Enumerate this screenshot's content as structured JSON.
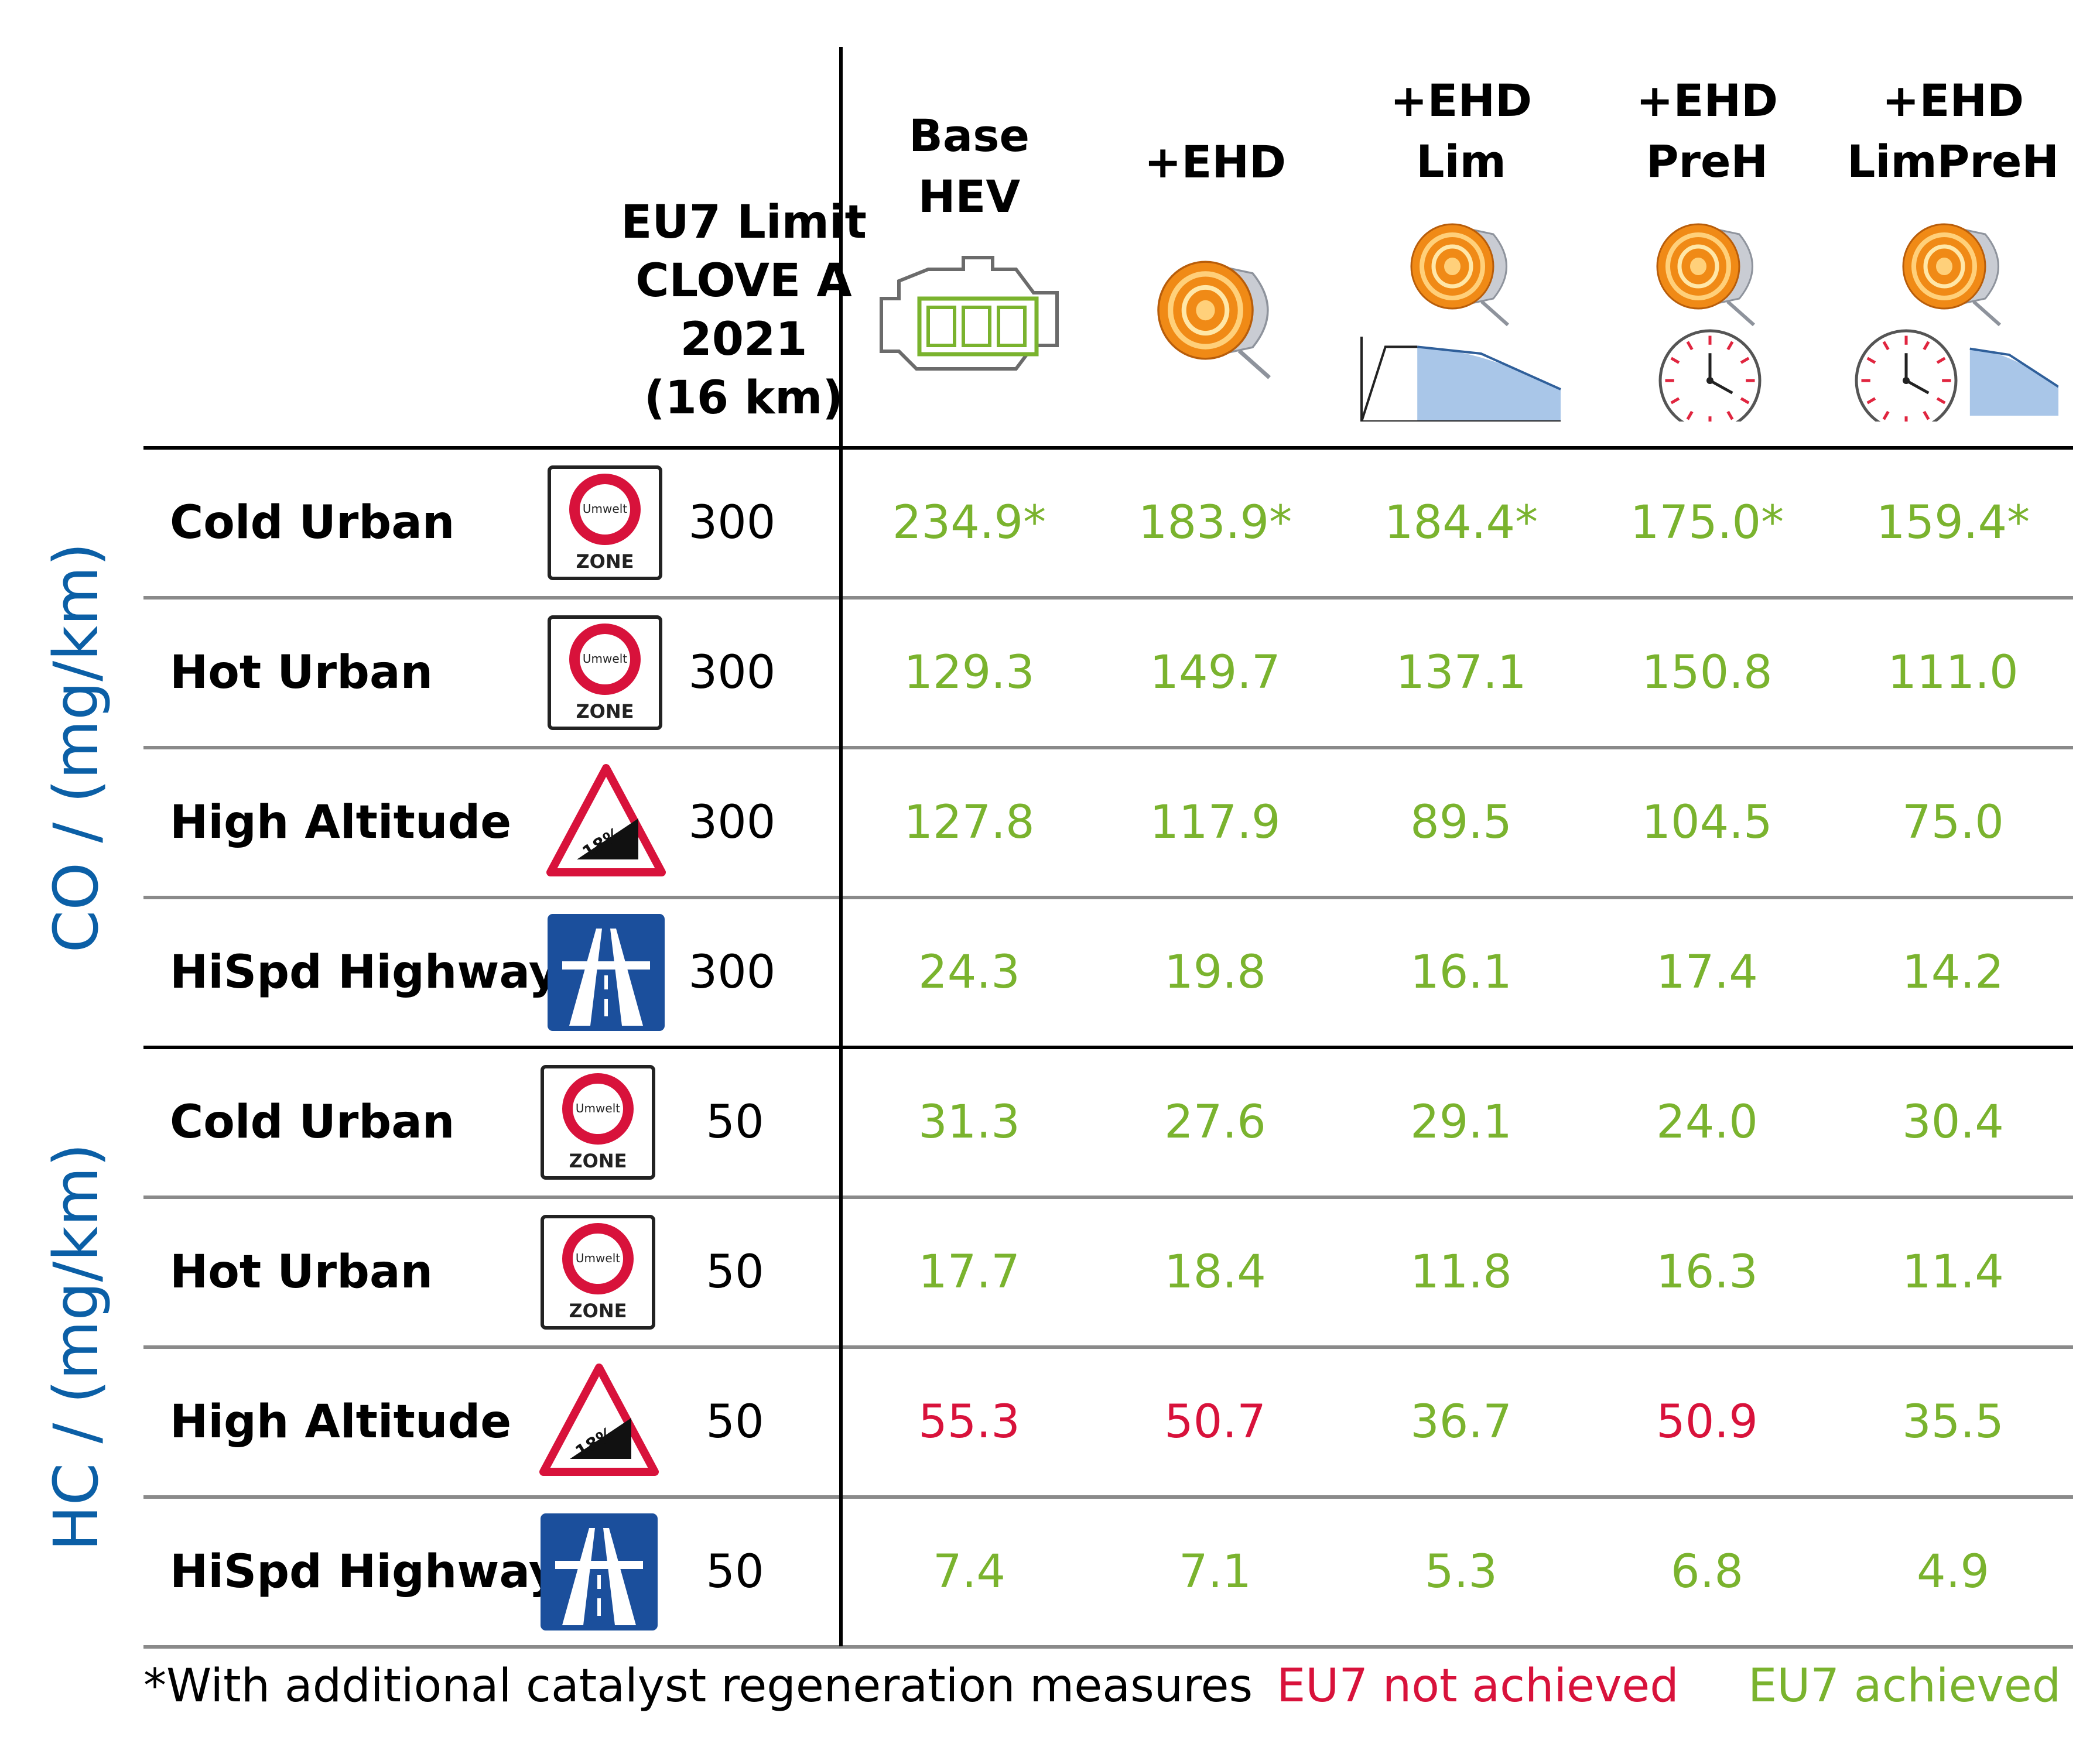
{
  "chart_data": {
    "type": "table",
    "title": "",
    "limit_header": [
      "EU7 Limit",
      "CLOVE A",
      "2021",
      "(16 km)"
    ],
    "columns": [
      {
        "lines": [
          "Base",
          "HEV"
        ],
        "icon": "engine-battery-icon"
      },
      {
        "lines": [
          "+EHD"
        ],
        "icon": "heated-catalyst-icon"
      },
      {
        "lines": [
          "+EHD",
          "Lim"
        ],
        "icon": "heated-catalyst-power-limit-icon"
      },
      {
        "lines": [
          "+EHD",
          "PreH"
        ],
        "icon": "heated-catalyst-preheat-clock-icon"
      },
      {
        "lines": [
          "+EHD",
          "LimPreH"
        ],
        "icon": "heated-catalyst-limit-preheat-icon"
      }
    ],
    "sections": [
      {
        "label": "CO / (mg/km)",
        "rows": [
          {
            "name": "Cold Urban",
            "sign": "umwelt-zone-sign-icon",
            "sign_text": {
              "top": "Umwelt",
              "bottom": "ZONE"
            },
            "limit": "300",
            "values": [
              "234.9*",
              "183.9*",
              "184.4*",
              "175.0*",
              "159.4*"
            ],
            "status": [
              "achieved",
              "achieved",
              "achieved",
              "achieved",
              "achieved"
            ]
          },
          {
            "name": "Hot Urban",
            "sign": "umwelt-zone-sign-icon",
            "sign_text": {
              "top": "Umwelt",
              "bottom": "ZONE"
            },
            "limit": "300",
            "values": [
              "129.3",
              "149.7",
              "137.1",
              "150.8",
              "111.0"
            ],
            "status": [
              "achieved",
              "achieved",
              "achieved",
              "achieved",
              "achieved"
            ]
          },
          {
            "name": "High Altitude",
            "sign": "steep-grade-sign-icon",
            "sign_text": {
              "grade": "18%"
            },
            "limit": "300",
            "values": [
              "127.8",
              "117.9",
              "89.5",
              "104.5",
              "75.0"
            ],
            "status": [
              "achieved",
              "achieved",
              "achieved",
              "achieved",
              "achieved"
            ]
          },
          {
            "name": "HiSpd Highway",
            "sign": "autobahn-sign-icon",
            "limit": "300",
            "values": [
              "24.3",
              "19.8",
              "16.1",
              "17.4",
              "14.2"
            ],
            "status": [
              "achieved",
              "achieved",
              "achieved",
              "achieved",
              "achieved"
            ]
          }
        ]
      },
      {
        "label": "HC / (mg/km)",
        "rows": [
          {
            "name": "Cold Urban",
            "sign": "umwelt-zone-sign-icon",
            "sign_text": {
              "top": "Umwelt",
              "bottom": "ZONE"
            },
            "limit": "50",
            "values": [
              "31.3",
              "27.6",
              "29.1",
              "24.0",
              "30.4"
            ],
            "status": [
              "achieved",
              "achieved",
              "achieved",
              "achieved",
              "achieved"
            ]
          },
          {
            "name": "Hot Urban",
            "sign": "umwelt-zone-sign-icon",
            "sign_text": {
              "top": "Umwelt",
              "bottom": "ZONE"
            },
            "limit": "50",
            "values": [
              "17.7",
              "18.4",
              "11.8",
              "16.3",
              "11.4"
            ],
            "status": [
              "achieved",
              "achieved",
              "achieved",
              "achieved",
              "achieved"
            ]
          },
          {
            "name": "High Altitude",
            "sign": "steep-grade-sign-icon",
            "sign_text": {
              "grade": "18%"
            },
            "limit": "50",
            "values": [
              "55.3",
              "50.7",
              "36.7",
              "50.9",
              "35.5"
            ],
            "status": [
              "not_achieved",
              "not_achieved",
              "achieved",
              "not_achieved",
              "achieved"
            ]
          },
          {
            "name": "HiSpd Highway",
            "sign": "autobahn-sign-icon",
            "limit": "50",
            "values": [
              "7.4",
              "7.1",
              "5.3",
              "6.8",
              "4.9"
            ],
            "status": [
              "achieved",
              "achieved",
              "achieved",
              "achieved",
              "achieved"
            ]
          }
        ]
      }
    ],
    "legend": {
      "footnote": "*With additional catalyst regeneration measures",
      "not_achieved": "EU7 not achieved",
      "achieved": "EU7 achieved"
    },
    "colors": {
      "achieved": "#7ab32e",
      "not_achieved": "#d8123b",
      "section_label": "#0b5fa6",
      "sign_red": "#d8123b",
      "sign_blue": "#1b4f9c"
    }
  }
}
